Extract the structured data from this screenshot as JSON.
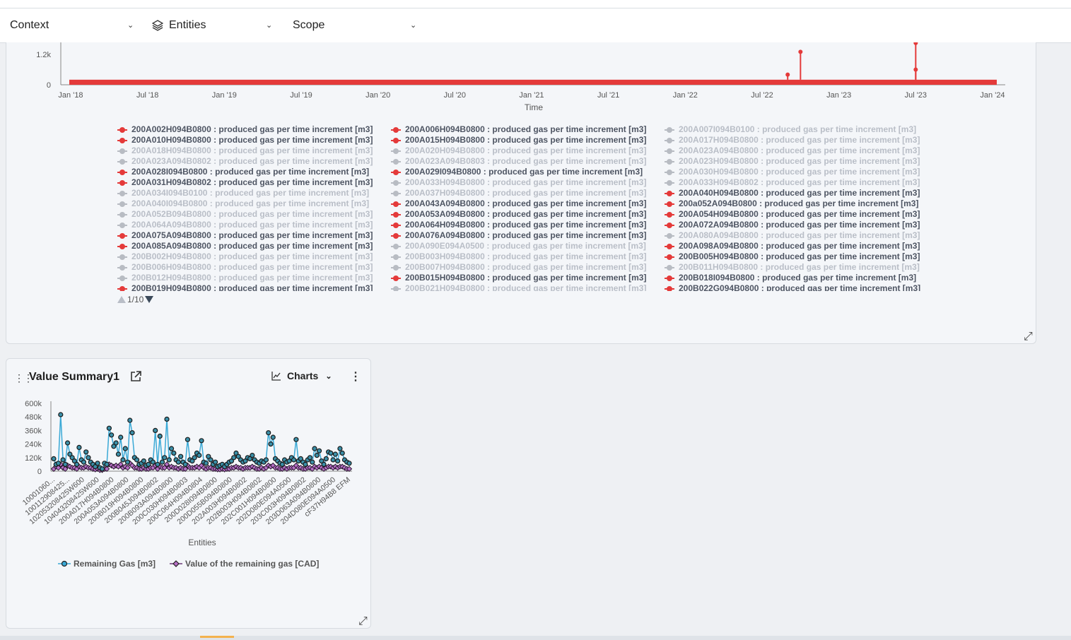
{
  "filters": {
    "context": "Context",
    "entities": "Entities",
    "scope": "Scope"
  },
  "colors": {
    "series_active": "#e43a3a",
    "series_inactive": "#b8bcc3",
    "line_series": "#3aa9d6",
    "diamond_series": "#6b3a78"
  },
  "time_chart": {
    "chart_data": {
      "type": "line",
      "y_ticks": [
        "0",
        "1.2k"
      ],
      "x_ticks": [
        "Jan '18",
        "Jul '18",
        "Jan '19",
        "Jul '19",
        "Jan '20",
        "Jul '20",
        "Jan '21",
        "Jul '21",
        "Jan '22",
        "Jul '22",
        "Jan '23",
        "Jul '23",
        "Jan '24"
      ],
      "xlabel": "Time",
      "baseline_value": 200,
      "spikes": [
        {
          "x": "2022-09",
          "value": 400
        },
        {
          "x": "2022-10",
          "value": 1300
        },
        {
          "x": "2023-07",
          "value": 1650
        },
        {
          "x": "2023-07",
          "value": 600
        }
      ]
    },
    "legend": {
      "suffix": " : produced gas per time increment [m3]",
      "columns": [
        [
          {
            "name": "200A002H094B0800",
            "on": true
          },
          {
            "name": "200A010H094B0800",
            "on": true
          },
          {
            "name": "200A018H094B0800",
            "on": false
          },
          {
            "name": "200A023A094B0802",
            "on": false
          },
          {
            "name": "200A028I094B0800",
            "on": true
          },
          {
            "name": "200A031H094B0802",
            "on": true
          },
          {
            "name": "200A034I094B0100",
            "on": false
          },
          {
            "name": "200A040I094B0800",
            "on": false
          },
          {
            "name": "200A052B094B0800",
            "on": false
          },
          {
            "name": "200A064A094B0800",
            "on": false
          },
          {
            "name": "200A075A094B0800",
            "on": true
          },
          {
            "name": "200A085A094B0800",
            "on": true
          },
          {
            "name": "200B002H094B0800",
            "on": false
          },
          {
            "name": "200B006H094B0800",
            "on": false
          },
          {
            "name": "200B012H094B0800",
            "on": false
          },
          {
            "name": "200B019H094B0800",
            "on": true
          }
        ],
        [
          {
            "name": "200A006H094B0800",
            "on": true
          },
          {
            "name": "200A015H094B0800",
            "on": true
          },
          {
            "name": "200A020H094B0800",
            "on": false
          },
          {
            "name": "200A023A094B0803",
            "on": false
          },
          {
            "name": "200A029I094B0800",
            "on": true
          },
          {
            "name": "200A033H094B0800",
            "on": false
          },
          {
            "name": "200A037H094B0800",
            "on": false
          },
          {
            "name": "200A043A094B0800",
            "on": true
          },
          {
            "name": "200A053A094B0800",
            "on": true
          },
          {
            "name": "200A064H094B0800",
            "on": true
          },
          {
            "name": "200A076A094B0800",
            "on": true
          },
          {
            "name": "200A090E094A0500",
            "on": false
          },
          {
            "name": "200B003H094B0800",
            "on": false
          },
          {
            "name": "200B007H094B0800",
            "on": false
          },
          {
            "name": "200B015H094B0800",
            "on": true
          },
          {
            "name": "200B021H094B0800",
            "on": false
          }
        ],
        [
          {
            "name": "200A007I094B0100",
            "on": false
          },
          {
            "name": "200A017H094B0800",
            "on": false
          },
          {
            "name": "200A023A094B0800",
            "on": false
          },
          {
            "name": "200A023H094B0800",
            "on": false
          },
          {
            "name": "200A030H094B0800",
            "on": false
          },
          {
            "name": "200A033H094B0802",
            "on": false
          },
          {
            "name": "200A040H094B0800",
            "on": true
          },
          {
            "name": "200a052A094B0800",
            "on": true
          },
          {
            "name": "200A054H094B0800",
            "on": true
          },
          {
            "name": "200A072A094B0800",
            "on": true
          },
          {
            "name": "200A080A094B0800",
            "on": false
          },
          {
            "name": "200A098A094B0800",
            "on": true
          },
          {
            "name": "200B005H094B0800",
            "on": true
          },
          {
            "name": "200B011H094B0800",
            "on": false
          },
          {
            "name": "200B018I094B0800",
            "on": true
          },
          {
            "name": "200B022G094B0800",
            "on": true
          }
        ]
      ],
      "pager": "1/10"
    }
  },
  "value_summary": {
    "title": "Value Summary1",
    "charts_label": "Charts",
    "chart_data": {
      "type": "scatter",
      "y_ticks": [
        "0",
        "120k",
        "240k",
        "360k",
        "480k",
        "600k"
      ],
      "ylim": [
        0,
        600000
      ],
      "xlabel": "Entities",
      "x_tick_labels": [
        "10001060...",
        "100112908425...",
        "102053208425W600",
        "104043208425W600",
        "200A017H094B0800",
        "200A053A094B0800",
        "200B019H094B0800",
        "200B045J094B0802",
        "200B093A094B0800",
        "200C030H094B0803",
        "200C064H094B0804",
        "200D028I094B0800",
        "200D055B094B0800",
        "202A003H094B0802",
        "202B003H094B0802",
        "202C001H094B0800",
        "202D080E094A0500",
        "203C003H094B0802",
        "203D063A094B0800",
        "204D080E094A0500",
        "cF37H94B8 EFM"
      ],
      "series": [
        {
          "name": "Remaining Gas [m3]",
          "values": [
            110000,
            60000,
            70000,
            500000,
            100000,
            60000,
            250000,
            150000,
            120000,
            90000,
            60000,
            210000,
            100000,
            80000,
            170000,
            120000,
            80000,
            60000,
            40000,
            70000,
            30000,
            20000,
            70000,
            60000,
            380000,
            320000,
            220000,
            250000,
            150000,
            300000,
            100000,
            200000,
            80000,
            450000,
            340000,
            120000,
            100000,
            60000,
            70000,
            90000,
            50000,
            60000,
            100000,
            80000,
            360000,
            60000,
            310000,
            80000,
            120000,
            460000,
            100000,
            200000,
            160000,
            100000,
            80000,
            130000,
            80000,
            60000,
            280000,
            100000,
            90000,
            120000,
            160000,
            140000,
            270000,
            80000,
            70000,
            130000,
            100000,
            60000,
            80000,
            40000,
            50000,
            60000,
            40000,
            60000,
            80000,
            90000,
            120000,
            160000,
            130000,
            100000,
            80000,
            90000,
            120000,
            110000,
            140000,
            100000,
            80000,
            70000,
            90000,
            80000,
            100000,
            340000,
            240000,
            300000,
            110000,
            90000,
            70000,
            60000,
            100000,
            80000,
            90000,
            120000,
            100000,
            280000,
            90000,
            110000,
            80000,
            60000,
            100000,
            120000,
            80000,
            200000,
            140000,
            180000,
            90000,
            60000,
            110000,
            170000,
            160000,
            100000,
            150000,
            90000,
            200000,
            160000,
            100000,
            80000,
            70000
          ]
        },
        {
          "name": "Value of the remaining gas [CAD]",
          "values": [
            20000,
            40000,
            30000,
            60000,
            30000,
            20000,
            50000,
            40000,
            30000,
            30000,
            20000,
            40000,
            30000,
            30000,
            40000,
            30000,
            30000,
            20000,
            15000,
            20000,
            10000,
            10000,
            20000,
            20000,
            60000,
            50000,
            40000,
            50000,
            40000,
            60000,
            30000,
            40000,
            30000,
            70000,
            50000,
            30000,
            30000,
            20000,
            20000,
            30000,
            20000,
            20000,
            30000,
            30000,
            50000,
            20000,
            40000,
            30000,
            30000,
            60000,
            30000,
            40000,
            30000,
            30000,
            20000,
            30000,
            20000,
            20000,
            50000,
            30000,
            30000,
            30000,
            40000,
            30000,
            50000,
            30000,
            20000,
            30000,
            30000,
            20000,
            20000,
            15000,
            15000,
            20000,
            15000,
            20000,
            20000,
            30000,
            30000,
            40000,
            30000,
            30000,
            20000,
            30000,
            30000,
            30000,
            40000,
            30000,
            20000,
            20000,
            30000,
            20000,
            30000,
            50000,
            40000,
            50000,
            30000,
            30000,
            20000,
            20000,
            30000,
            20000,
            30000,
            30000,
            30000,
            50000,
            30000,
            30000,
            20000,
            20000,
            30000,
            30000,
            20000,
            40000,
            30000,
            40000,
            30000,
            20000,
            30000,
            40000,
            40000,
            30000,
            40000,
            30000,
            40000,
            40000,
            30000,
            20000,
            20000
          ]
        }
      ]
    }
  }
}
